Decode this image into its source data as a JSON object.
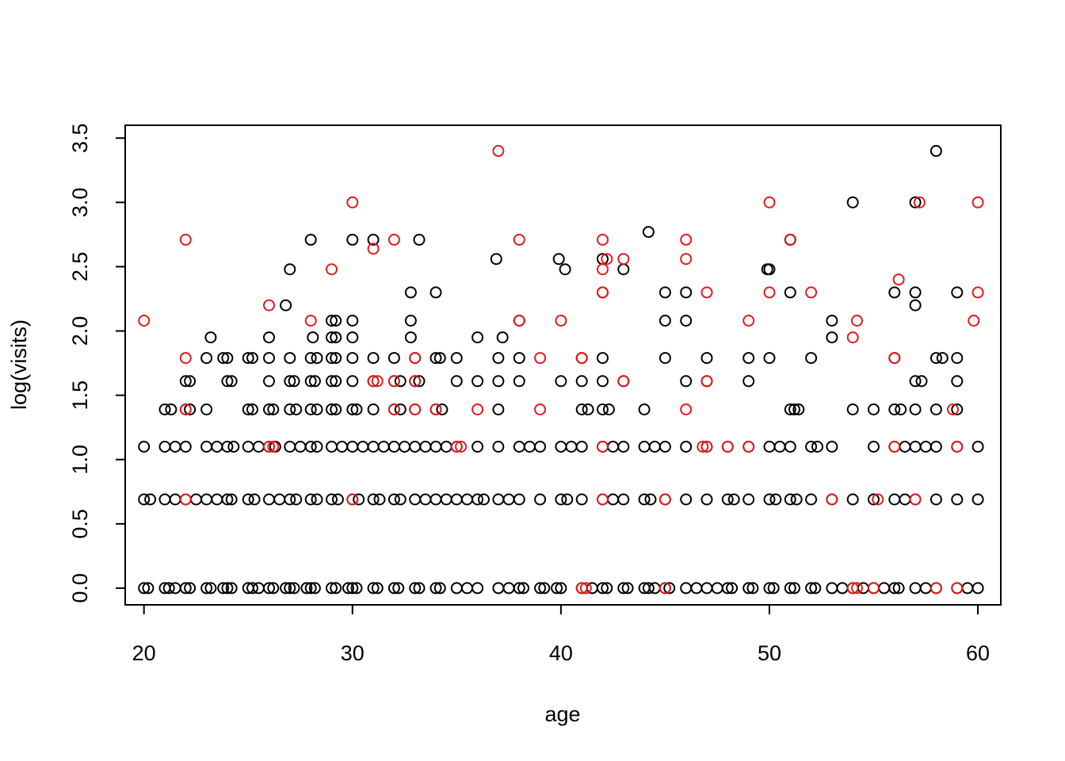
{
  "chart_data": {
    "type": "scatter",
    "title": "",
    "xlabel": "age",
    "ylabel": "log(visits)",
    "xlim": [
      19.1,
      61.1
    ],
    "ylim": [
      -0.13,
      3.6
    ],
    "x_ticks": [
      20,
      30,
      40,
      50,
      60
    ],
    "y_ticks": [
      0.0,
      0.5,
      1.0,
      1.5,
      2.0,
      2.5,
      3.0,
      3.5
    ],
    "x_tick_labels": [
      "20",
      "30",
      "40",
      "50",
      "60"
    ],
    "y_tick_labels": [
      "0.0",
      "0.5",
      "1.0",
      "1.5",
      "2.0",
      "2.5",
      "3.0",
      "3.5"
    ],
    "grid": false,
    "legend": "none",
    "marker": "open-circle",
    "colors": {
      "group_1": "#000000",
      "group_2": "#e41a1c"
    },
    "series": [
      {
        "color": "#000000",
        "x": [
          20,
          20.2,
          21,
          21.2,
          21.5,
          22,
          22.2,
          23,
          23.2,
          23.8,
          24,
          24.2,
          25,
          25.2,
          25.5,
          26,
          26.2,
          26.8,
          27,
          27.2,
          27.8,
          28,
          28.2,
          29,
          29.2,
          29.8,
          30,
          30.2,
          31,
          31.2,
          32,
          32.2,
          33,
          33.2,
          34,
          34.2,
          35,
          35.5,
          36,
          37,
          37.5,
          38,
          38.2,
          39,
          39.2,
          39.8,
          40,
          41,
          41.5,
          42,
          42.2,
          43,
          43.2,
          44,
          44.2,
          44.5,
          45,
          45.2,
          46,
          46.5,
          47,
          47.5,
          48,
          48.2,
          49,
          49.2,
          50,
          50.2,
          51,
          51.2,
          52,
          52.2,
          53,
          53.5,
          54,
          54.5,
          55,
          55.5,
          56,
          56.2,
          57,
          57.5,
          58,
          59,
          59.5,
          60,
          20,
          20.3,
          21,
          21.5,
          22,
          22.5,
          23,
          23.5,
          24,
          24.2,
          25,
          25.3,
          26,
          26.5,
          27,
          27.3,
          28,
          28.3,
          29,
          29.3,
          30,
          30.3,
          31,
          31.3,
          32,
          32.3,
          33,
          33.5,
          34,
          34.5,
          35,
          35.5,
          36,
          36.3,
          37,
          37.5,
          38,
          39,
          40,
          40.3,
          41,
          42,
          42.5,
          43,
          44,
          44.3,
          45,
          46,
          47,
          48,
          48.3,
          49,
          50,
          50.3,
          51,
          51.3,
          52,
          53,
          54,
          55,
          56,
          56.5,
          57,
          58,
          59,
          60,
          20,
          21,
          21.5,
          22,
          23,
          23.5,
          24,
          24.3,
          25,
          25.5,
          26,
          26.3,
          27,
          27.5,
          28,
          28.3,
          29,
          29.5,
          30,
          30.5,
          31,
          31.5,
          32,
          32.5,
          33,
          33.5,
          34,
          34.5,
          35,
          36,
          37,
          38,
          38.5,
          39,
          40,
          40.5,
          41,
          42,
          42.5,
          43,
          44,
          44.5,
          45,
          46,
          47,
          48,
          49,
          50,
          50.5,
          51,
          52,
          52.3,
          53,
          55,
          56,
          56.5,
          57,
          57.5,
          58,
          59,
          60,
          21,
          21.3,
          22,
          22.2,
          23,
          25,
          25.2,
          26,
          26.2,
          27,
          27.3,
          28,
          28.3,
          29,
          29.2,
          30,
          30.2,
          31,
          32,
          32.3,
          33,
          34,
          34.3,
          37,
          41,
          41.3,
          42,
          42.3,
          44,
          51,
          51.2,
          51.4,
          54,
          55,
          56,
          56.3,
          57,
          58,
          59,
          22,
          22.2,
          24,
          24.2,
          26,
          27,
          27.2,
          28,
          28.2,
          29,
          29.2,
          30,
          31,
          32,
          32.3,
          33,
          33.2,
          35,
          36,
          37,
          38,
          40,
          41,
          42,
          43,
          46,
          47,
          49,
          57,
          57.3,
          59,
          23,
          23.8,
          24,
          25,
          25.2,
          26,
          27,
          28,
          28.3,
          29,
          29.2,
          30,
          31,
          32,
          33,
          34,
          34.2,
          35,
          37,
          38,
          41,
          42,
          45,
          47,
          49,
          50,
          52,
          56,
          58,
          58.3,
          59,
          23.2,
          26,
          28.1,
          29,
          29.2,
          30,
          32.8,
          36,
          37.2,
          53,
          29,
          29.2,
          30,
          32.8,
          38,
          45,
          46,
          53,
          26.8,
          32.8,
          34,
          45,
          46,
          51,
          56,
          57,
          27,
          36.9,
          42,
          43,
          49.9,
          51,
          59,
          28,
          30,
          31,
          33.2,
          39.9,
          40.2,
          42,
          44.2,
          51,
          54,
          57,
          58,
          50,
          57
        ],
        "y": [
          0,
          0,
          0,
          0,
          0,
          0,
          0,
          0,
          0,
          0,
          0,
          0,
          0,
          0,
          0,
          0,
          0,
          0,
          0,
          0,
          0,
          0,
          0,
          0,
          0,
          0,
          0,
          0,
          0,
          0,
          0,
          0,
          0,
          0,
          0,
          0,
          0,
          0,
          0,
          0,
          0,
          0,
          0,
          0,
          0,
          0,
          0,
          0,
          0,
          0,
          0,
          0,
          0,
          0,
          0,
          0,
          0,
          0,
          0,
          0,
          0,
          0,
          0,
          0,
          0,
          0,
          0,
          0,
          0,
          0,
          0,
          0,
          0,
          0,
          0,
          0,
          0,
          0,
          0,
          0,
          0,
          0,
          0,
          0,
          0,
          0,
          0.69,
          0.69,
          0.69,
          0.69,
          0.69,
          0.69,
          0.69,
          0.69,
          0.69,
          0.69,
          0.69,
          0.69,
          0.69,
          0.69,
          0.69,
          0.69,
          0.69,
          0.69,
          0.69,
          0.69,
          0.69,
          0.69,
          0.69,
          0.69,
          0.69,
          0.69,
          0.69,
          0.69,
          0.69,
          0.69,
          0.69,
          0.69,
          0.69,
          0.69,
          0.69,
          0.69,
          0.69,
          0.69,
          0.69,
          0.69,
          0.69,
          0.69,
          0.69,
          0.69,
          0.69,
          0.69,
          0.69,
          0.69,
          0.69,
          0.69,
          0.69,
          0.69,
          0.69,
          0.69,
          0.69,
          0.69,
          0.69,
          0.69,
          0.69,
          0.69,
          0.69,
          0.69,
          0.69,
          0.69,
          0.69,
          0.69,
          1.1,
          1.1,
          1.1,
          1.1,
          1.1,
          1.1,
          1.1,
          1.1,
          1.1,
          1.1,
          1.1,
          1.1,
          1.1,
          1.1,
          1.1,
          1.1,
          1.1,
          1.1,
          1.1,
          1.1,
          1.1,
          1.1,
          1.1,
          1.1,
          1.1,
          1.1,
          1.1,
          1.1,
          1.1,
          1.1,
          1.1,
          1.1,
          1.1,
          1.1,
          1.1,
          1.1,
          1.1,
          1.1,
          1.1,
          1.1,
          1.1,
          1.1,
          1.1,
          1.1,
          1.1,
          1.1,
          1.1,
          1.1,
          1.1,
          1.1,
          1.1,
          1.1,
          1.1,
          1.1,
          1.1,
          1.1,
          1.1,
          1.1,
          1.1,
          1.1,
          1.1,
          1.39,
          1.39,
          1.39,
          1.39,
          1.39,
          1.39,
          1.39,
          1.39,
          1.39,
          1.39,
          1.39,
          1.39,
          1.39,
          1.39,
          1.39,
          1.39,
          1.39,
          1.39,
          1.39,
          1.39,
          1.39,
          1.39,
          1.39,
          1.39,
          1.39,
          1.39,
          1.39,
          1.39,
          1.39,
          1.39,
          1.39,
          1.39,
          1.39,
          1.39,
          1.39,
          1.39,
          1.39,
          1.39,
          1.39,
          1.61,
          1.61,
          1.61,
          1.61,
          1.61,
          1.61,
          1.61,
          1.61,
          1.61,
          1.61,
          1.61,
          1.61,
          1.61,
          1.61,
          1.61,
          1.61,
          1.61,
          1.61,
          1.61,
          1.61,
          1.61,
          1.61,
          1.61,
          1.61,
          1.61,
          1.61,
          1.61,
          1.61,
          1.61,
          1.61,
          1.61,
          1.79,
          1.79,
          1.79,
          1.79,
          1.79,
          1.79,
          1.79,
          1.79,
          1.79,
          1.79,
          1.79,
          1.79,
          1.79,
          1.79,
          1.79,
          1.79,
          1.79,
          1.79,
          1.79,
          1.79,
          1.79,
          1.79,
          1.79,
          1.79,
          1.79,
          1.79,
          1.79,
          1.79,
          1.79,
          1.79,
          1.79,
          1.95,
          1.95,
          1.95,
          1.95,
          1.95,
          1.95,
          1.95,
          1.95,
          1.95,
          1.95,
          2.08,
          2.08,
          2.08,
          2.08,
          2.08,
          2.08,
          2.08,
          2.08,
          2.2,
          2.3,
          2.3,
          2.3,
          2.3,
          2.3,
          2.3,
          2.2,
          2.48,
          2.56,
          2.3,
          2.48,
          2.48,
          2.71,
          2.3,
          2.71,
          2.71,
          2.71,
          2.71,
          2.56,
          2.48,
          2.56,
          2.77,
          2.71,
          3.0,
          3.0,
          3.4,
          2.48,
          2.3
        ]
      },
      {
        "color": "#e41a1c",
        "x": [
          41,
          41.2,
          45,
          54,
          54.2,
          55,
          58,
          59,
          22,
          30,
          42,
          45,
          53,
          55.2,
          57,
          26,
          26.2,
          35,
          35.2,
          42,
          46.8,
          47,
          48,
          49,
          56,
          59,
          22,
          32,
          33,
          34,
          36,
          39,
          46,
          58.8,
          31,
          31.2,
          32,
          33,
          47,
          43,
          22,
          33,
          41,
          39,
          41,
          54,
          56,
          20,
          28,
          38,
          40,
          49,
          54.2,
          59.8,
          26,
          42,
          43,
          29,
          42.2,
          42,
          47,
          52,
          50,
          56.2,
          60,
          46,
          22,
          32,
          38,
          42,
          51,
          31,
          46,
          30,
          50,
          57.2,
          60,
          37
        ],
        "y": [
          0,
          0,
          0,
          0,
          0,
          0,
          0,
          0,
          0.69,
          0.69,
          0.69,
          0.69,
          0.69,
          0.69,
          0.69,
          1.1,
          1.1,
          1.1,
          1.1,
          1.1,
          1.1,
          1.1,
          1.1,
          1.1,
          1.1,
          1.1,
          1.39,
          1.39,
          1.39,
          1.39,
          1.39,
          1.39,
          1.39,
          1.39,
          1.61,
          1.61,
          1.61,
          1.61,
          1.61,
          1.61,
          1.79,
          1.79,
          1.79,
          1.79,
          1.79,
          1.95,
          1.79,
          2.08,
          2.08,
          2.08,
          2.08,
          2.08,
          2.08,
          2.08,
          2.2,
          2.48,
          2.56,
          2.48,
          2.56,
          2.3,
          2.3,
          2.3,
          2.3,
          2.4,
          2.3,
          2.56,
          2.71,
          2.71,
          2.71,
          2.71,
          2.71,
          2.64,
          2.71,
          3.0,
          3.0,
          3.0,
          3.0,
          3.4
        ]
      }
    ]
  }
}
